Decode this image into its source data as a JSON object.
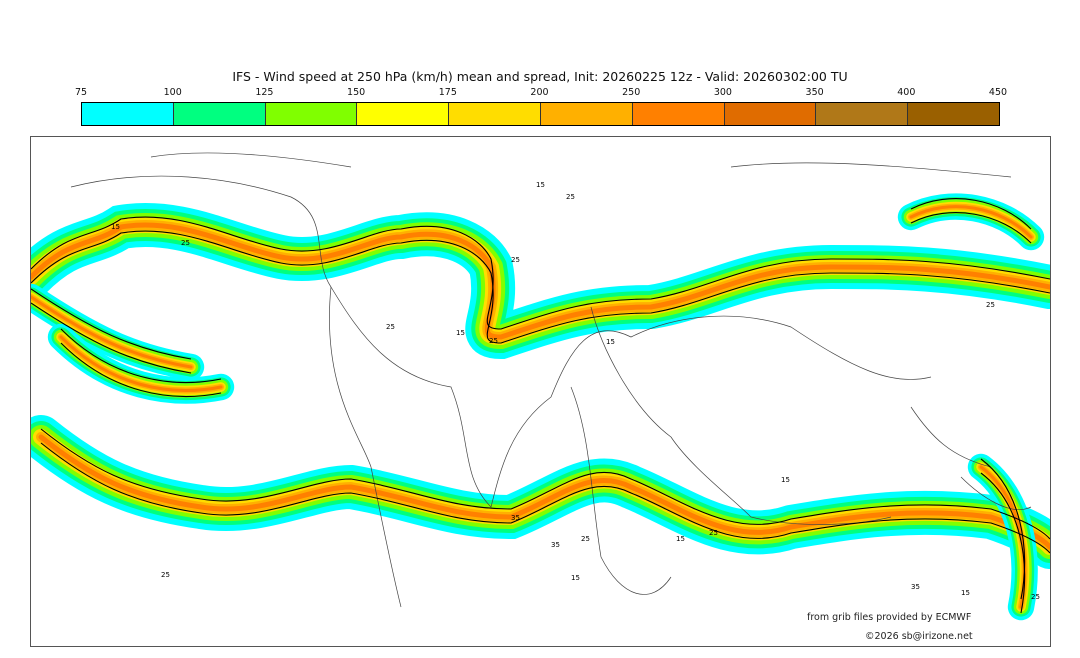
{
  "title": "IFS - Wind speed at 250 hPa (km/h) mean and spread, Init: 20260225 12z - Valid: 20260302:00 TU",
  "legend": {
    "ticks": [
      "75",
      "100",
      "125",
      "150",
      "175",
      "200",
      "250",
      "300",
      "350",
      "400",
      "450"
    ],
    "colors": [
      "#00ffff",
      "#00ff80",
      "#80ff00",
      "#ffff00",
      "#ffdd00",
      "#ffb000",
      "#ff8000",
      "#e06c00",
      "#b07818",
      "#9a6000"
    ]
  },
  "contour_labels": [
    "15",
    "25",
    "25",
    "15",
    "25",
    "25",
    "15",
    "25",
    "15",
    "35",
    "35",
    "25",
    "25",
    "15",
    "15",
    "25",
    "15",
    "25",
    "35",
    "15",
    "25"
  ],
  "credits": {
    "source": "from grib files provided by ECMWF",
    "copyright": "©2026 sb@irizone.net"
  }
}
